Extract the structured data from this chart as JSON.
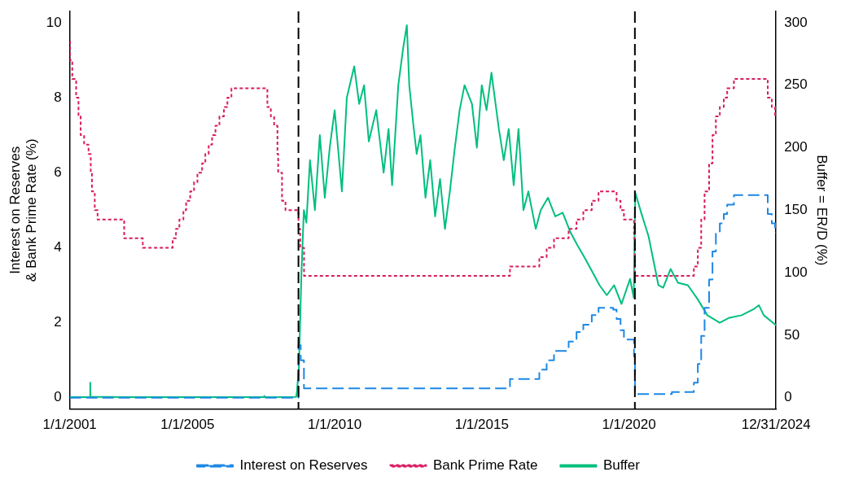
{
  "chart_data": {
    "type": "step",
    "ylabel": "Interest on Reserves & Bank Prime Rate (%)",
    "y2label": "Buffer = ER/D (%)",
    "xlim": [
      "2001-01-01",
      "2024-12-31"
    ],
    "xticks": [
      {
        "value": "2001-01-01",
        "label": "1/1/2001"
      },
      {
        "value": "2005-01-01",
        "label": "1/1/2005"
      },
      {
        "value": "2010-01-01",
        "label": "1/1/2010"
      },
      {
        "value": "2015-01-01",
        "label": "1/1/2015"
      },
      {
        "value": "2020-01-01",
        "label": "1/1/2020"
      },
      {
        "value": "2024-12-31",
        "label": "12/31/2024"
      }
    ],
    "ylim": [
      -0.3,
      10.3
    ],
    "yticks": [
      0,
      2,
      4,
      6,
      8,
      10
    ],
    "y2lim": [
      -9,
      309
    ],
    "y2ticks": [
      0,
      50,
      100,
      150,
      200,
      250,
      300
    ],
    "grid": false,
    "legend": "bottom",
    "marker": "none",
    "ref_lines": [
      {
        "axis": "x",
        "value": "2008-10-09",
        "label": null,
        "color": "#000000",
        "line_style": "dashed"
      },
      {
        "axis": "x",
        "value": "2020-03-15",
        "label": null,
        "color": "#000000",
        "line_style": "dashed"
      }
    ],
    "series": [
      {
        "name": "Interest on Reserves",
        "color": "#1e88e5",
        "line_style": "dashed",
        "x": [
          "2001-01-01",
          "2008-10-09",
          "2008-11-06",
          "2008-12-16",
          "2015-12-17",
          "2016-12-15",
          "2017-03-16",
          "2017-06-15",
          "2017-12-14",
          "2018-03-22",
          "2018-06-14",
          "2018-09-27",
          "2018-12-20",
          "2019-06-20",
          "2019-08-01",
          "2019-09-19",
          "2019-10-31",
          "2020-03-04",
          "2020-03-16",
          "2021-06-17",
          "2022-03-17",
          "2022-05-05",
          "2022-06-16",
          "2022-07-28",
          "2022-09-22",
          "2022-11-03",
          "2022-12-15",
          "2023-02-02",
          "2023-03-23",
          "2023-05-04",
          "2023-07-27",
          "2024-09-19",
          "2024-11-08",
          "2024-12-19",
          "2024-12-31"
        ],
        "values": [
          0,
          1.4,
          1.0,
          0.25,
          0.5,
          0.75,
          1.0,
          1.25,
          1.5,
          1.75,
          1.95,
          2.2,
          2.4,
          2.35,
          2.1,
          1.8,
          1.55,
          1.1,
          0.1,
          0.15,
          0.4,
          0.9,
          1.65,
          2.4,
          3.15,
          3.9,
          4.4,
          4.65,
          4.9,
          5.15,
          5.4,
          4.9,
          4.65,
          4.4,
          4.4
        ]
      },
      {
        "name": "Bank Prime Rate",
        "color": "#d81b60",
        "line_style": "dotted",
        "x": [
          "2001-01-01",
          "2001-01-04",
          "2001-02-01",
          "2001-03-21",
          "2001-04-19",
          "2001-05-16",
          "2001-06-28",
          "2001-08-22",
          "2001-09-18",
          "2001-10-03",
          "2001-11-07",
          "2001-12-12",
          "2002-11-07",
          "2003-06-26",
          "2004-07-01",
          "2004-08-11",
          "2004-09-22",
          "2004-11-11",
          "2004-12-15",
          "2005-02-03",
          "2005-03-23",
          "2005-05-04",
          "2005-07-01",
          "2005-08-10",
          "2005-09-21",
          "2005-11-02",
          "2005-12-14",
          "2006-02-01",
          "2006-03-29",
          "2006-05-11",
          "2006-06-30",
          "2007-09-19",
          "2007-11-01",
          "2007-12-12",
          "2008-01-22",
          "2008-01-31",
          "2008-03-19",
          "2008-05-01",
          "2008-10-09",
          "2008-10-30",
          "2008-12-17",
          "2015-12-17",
          "2016-12-15",
          "2017-03-16",
          "2017-06-15",
          "2017-12-14",
          "2018-03-22",
          "2018-06-14",
          "2018-09-27",
          "2018-12-20",
          "2019-08-01",
          "2019-09-19",
          "2019-10-31",
          "2020-03-04",
          "2020-03-16",
          "2022-03-17",
          "2022-05-05",
          "2022-06-16",
          "2022-07-28",
          "2022-09-22",
          "2022-11-03",
          "2022-12-15",
          "2023-02-02",
          "2023-03-23",
          "2023-05-04",
          "2023-07-27",
          "2024-09-19",
          "2024-11-08",
          "2024-12-19",
          "2024-12-31"
        ],
        "values": [
          9.5,
          9.0,
          8.5,
          8.0,
          7.5,
          7.0,
          6.75,
          6.5,
          6.0,
          5.5,
          5.0,
          4.75,
          4.25,
          4.0,
          4.25,
          4.5,
          4.75,
          5.0,
          5.25,
          5.5,
          5.75,
          6.0,
          6.25,
          6.5,
          6.75,
          7.0,
          7.25,
          7.5,
          7.75,
          8.0,
          8.25,
          7.75,
          7.5,
          7.25,
          6.5,
          6.0,
          5.25,
          5.0,
          4.5,
          4.0,
          3.25,
          3.5,
          3.75,
          4.0,
          4.25,
          4.5,
          4.75,
          5.0,
          5.25,
          5.5,
          5.25,
          5.0,
          4.75,
          4.25,
          3.25,
          3.5,
          4.0,
          4.75,
          5.5,
          6.25,
          7.0,
          7.5,
          7.75,
          8.0,
          8.25,
          8.5,
          8.0,
          7.75,
          7.5,
          7.5
        ]
      },
      {
        "name": "Buffer",
        "type": "line",
        "axis": "y2",
        "color": "#00bf7d",
        "line_style": "solid",
        "x": [
          "2001-01-01",
          "2001-09-10",
          "2001-09-12",
          "2001-09-15",
          "2003-01-01",
          "2007-08-08",
          "2007-08-10",
          "2007-08-15",
          "2008-09-10",
          "2008-09-20",
          "2008-10-15",
          "2008-11-15",
          "2008-12-15",
          "2009-01-15",
          "2009-03-01",
          "2009-05-01",
          "2009-07-01",
          "2009-09-01",
          "2009-11-01",
          "2010-01-01",
          "2010-04-01",
          "2010-06-01",
          "2010-09-01",
          "2010-11-01",
          "2011-01-01",
          "2011-03-01",
          "2011-06-01",
          "2011-09-01",
          "2011-11-01",
          "2011-12-15",
          "2012-03-01",
          "2012-05-01",
          "2012-06-15",
          "2012-07-15",
          "2012-09-01",
          "2012-10-15",
          "2012-12-01",
          "2013-02-01",
          "2013-04-01",
          "2013-06-01",
          "2013-08-01",
          "2013-10-01",
          "2013-12-01",
          "2014-02-01",
          "2014-04-01",
          "2014-06-01",
          "2014-09-01",
          "2014-11-01",
          "2015-01-01",
          "2015-03-01",
          "2015-05-01",
          "2015-08-01",
          "2015-10-01",
          "2015-12-01",
          "2016-02-01",
          "2016-04-01",
          "2016-06-01",
          "2016-08-01",
          "2016-11-01",
          "2017-01-01",
          "2017-04-01",
          "2017-07-01",
          "2017-10-01",
          "2018-01-01",
          "2018-04-01",
          "2018-07-01",
          "2018-10-01",
          "2019-01-01",
          "2019-04-01",
          "2019-07-01",
          "2019-10-01",
          "2020-01-15",
          "2020-03-01",
          "2020-03-20",
          "2020-06-01",
          "2020-09-01",
          "2021-01-01",
          "2021-03-01",
          "2021-06-01",
          "2021-09-01",
          "2022-01-01",
          "2022-05-01",
          "2022-09-01",
          "2023-02-01",
          "2023-06-01",
          "2023-11-01",
          "2024-04-01",
          "2024-06-01",
          "2024-08-01",
          "2024-12-31"
        ],
        "values": [
          0.5,
          0.5,
          12,
          0.8,
          0.5,
          0.5,
          1.5,
          0.5,
          0.6,
          5,
          25,
          100,
          150,
          140,
          190,
          150,
          210,
          160,
          200,
          230,
          165,
          240,
          265,
          235,
          250,
          205,
          230,
          180,
          215,
          170,
          250,
          280,
          298,
          250,
          220,
          195,
          210,
          160,
          190,
          145,
          175,
          135,
          165,
          200,
          230,
          250,
          235,
          200,
          250,
          230,
          260,
          215,
          190,
          215,
          170,
          215,
          150,
          165,
          135,
          150,
          160,
          145,
          148,
          133,
          122,
          112,
          101,
          90,
          82,
          90,
          75,
          95,
          80,
          164,
          148,
          129,
          90,
          88,
          103,
          92,
          90,
          79,
          66,
          60,
          64,
          66,
          71,
          74,
          66,
          58
        ]
      }
    ]
  }
}
